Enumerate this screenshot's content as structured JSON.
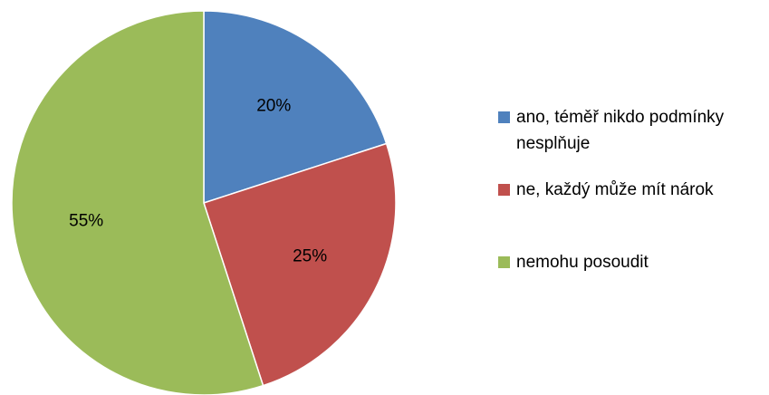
{
  "chart_data": {
    "type": "pie",
    "categories": [
      "ano, téměř nikdo podmínky nesplňuje",
      "ne, každý může mít nárok",
      "nemohu posoudit"
    ],
    "values": [
      20,
      25,
      55
    ],
    "value_labels": [
      "20%",
      "25%",
      "55%"
    ],
    "colors": [
      "#4f81bd",
      "#c0504d",
      "#9bbb59"
    ],
    "legend": "right"
  }
}
